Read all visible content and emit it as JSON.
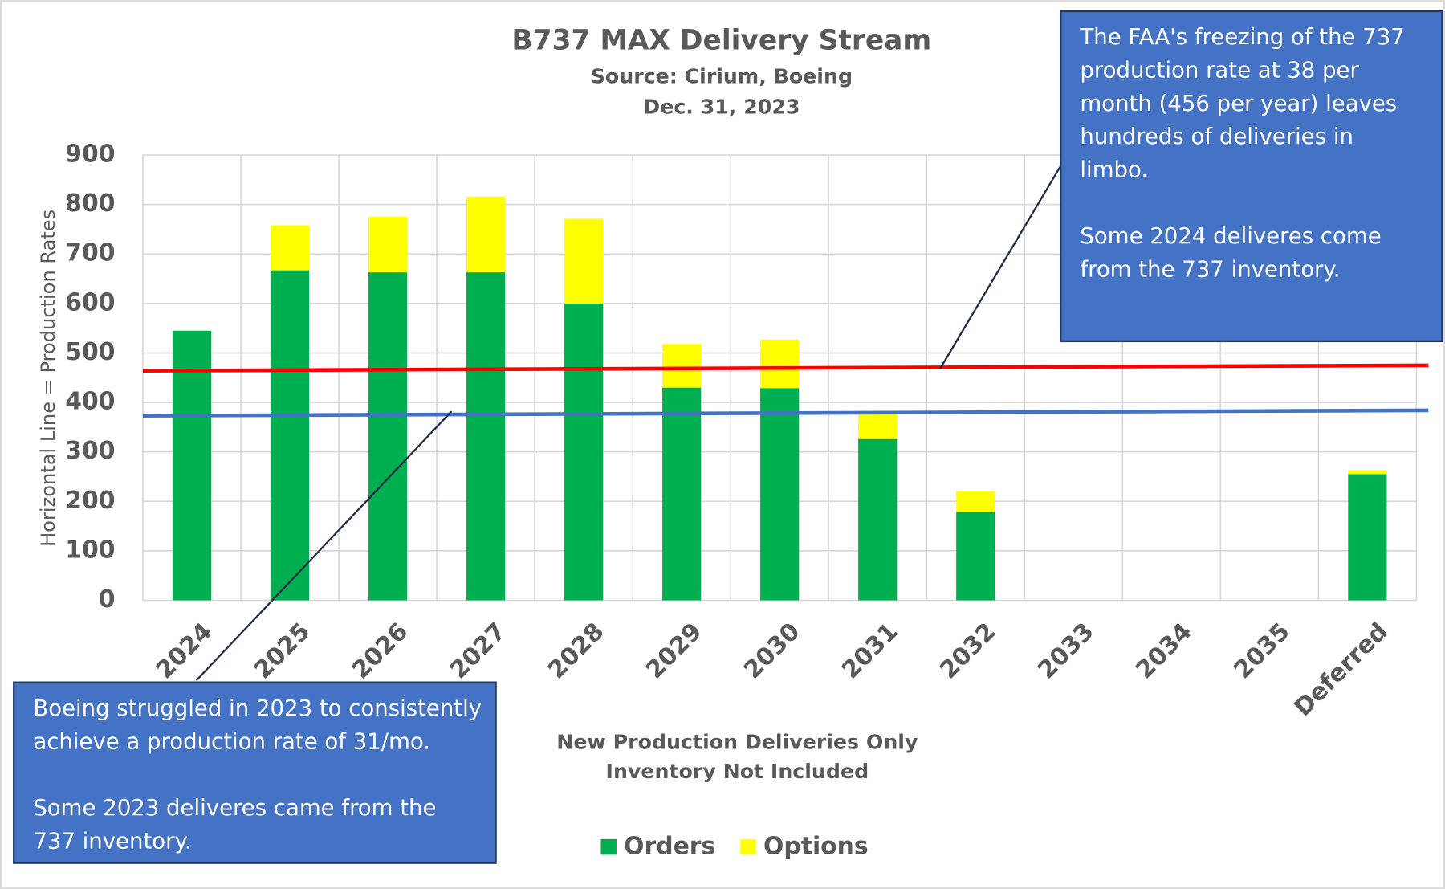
{
  "chart_data": {
    "type": "stacked_bar",
    "title": "B737 MAX Delivery Stream",
    "subtitle": [
      "Source: Cirium, Boeing",
      "Dec. 31, 2023"
    ],
    "y_label": "Horizontal Line = Production Rates",
    "x_label": [
      "New Production Deliveries Only",
      "Inventory Not Included"
    ],
    "categories": [
      "2024",
      "2025",
      "2026",
      "2027",
      "2028",
      "2029",
      "2030",
      "2031",
      "2032",
      "2033",
      "2034",
      "2035",
      "Deferred"
    ],
    "series": [
      {
        "name": "Orders",
        "color": "#00b050",
        "values": [
          545,
          667,
          663,
          663,
          600,
          430,
          429,
          326,
          179,
          null,
          null,
          null,
          255
        ]
      },
      {
        "name": "Options",
        "color": "#ffff00",
        "values": [
          0,
          91,
          112,
          153,
          171,
          88,
          98,
          54,
          41,
          null,
          null,
          null,
          8
        ]
      }
    ],
    "reference_lines": [
      {
        "color": "#ff0000",
        "values": [
          464,
          475
        ]
      },
      {
        "color": "#4472c4",
        "values": [
          373,
          384
        ]
      }
    ],
    "ylim": [
      0,
      900
    ],
    "yticks": [
      0,
      100,
      200,
      300,
      400,
      500,
      600,
      700,
      800,
      900
    ],
    "grid": true,
    "legend": "bottom",
    "annotations": [
      {
        "lines": [
          "The FAA's freezing of the 737",
          "production rate at 38 per",
          "month (456 per year) leaves",
          "hundreds of deliveries in",
          "limbo.",
          "",
          "Some 2024 deliveres come",
          "from the 737 inventory."
        ]
      },
      {
        "lines": [
          "Boeing struggled in 2023 to consistently",
          "achieve a production rate of 31/mo.",
          "",
          "Some 2023 deliveres came from the",
          "737 inventory."
        ]
      }
    ]
  }
}
